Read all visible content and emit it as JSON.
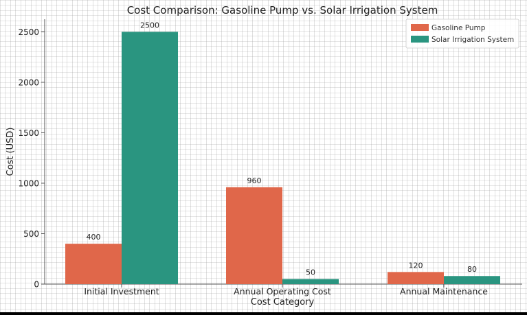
{
  "chart_data": {
    "type": "bar",
    "title": "Cost Comparison: Gasoline Pump vs. Solar Irrigation System",
    "xlabel": "Cost Category",
    "ylabel": "Cost (USD)",
    "categories": [
      "Initial Investment",
      "Annual Operating Cost",
      "Annual Maintenance"
    ],
    "series": [
      {
        "name": "Gasoline Pump",
        "values": [
          400,
          960,
          120
        ],
        "color": "#E0674A"
      },
      {
        "name": "Solar Irrigation System",
        "values": [
          2500,
          50,
          80
        ],
        "color": "#2A9580"
      }
    ],
    "yticks": [
      0,
      500,
      1000,
      1500,
      2000,
      2500
    ],
    "ylim": [
      0,
      2625
    ],
    "grid": true,
    "legend_position": "top-right"
  }
}
